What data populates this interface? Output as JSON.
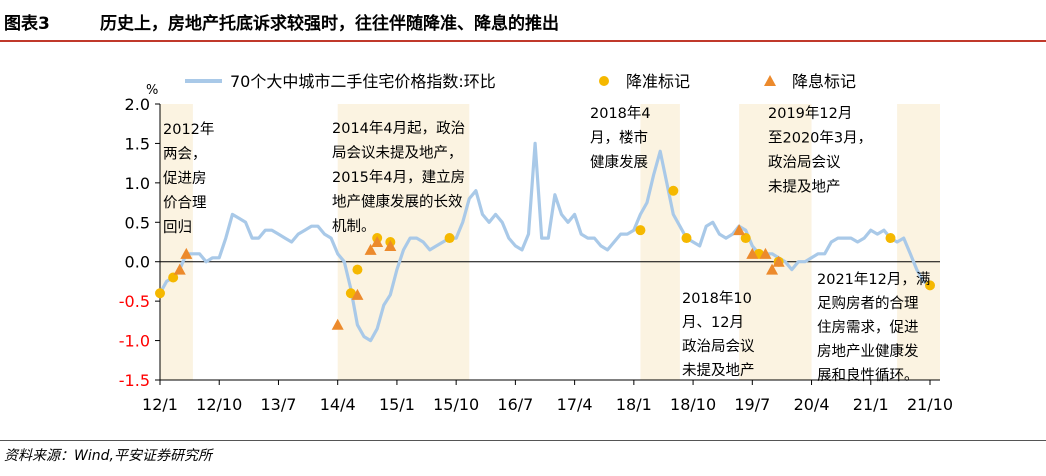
{
  "header": {
    "figure_no": "图表3",
    "title": "历史上，房地产托底诉求较强时，往往伴随降准、降息的推出"
  },
  "footer": {
    "source": "资料来源：Wind,平安证券研究所"
  },
  "colors": {
    "line": "#a9c9e8",
    "rrr_marker": "#f5b800",
    "rate_marker": "#ec8a2c",
    "shade": "#fbf3e1",
    "negative_tick": "#ff0000",
    "rule": "#c0392b"
  },
  "chart_data": {
    "type": "line",
    "unit_label": "%",
    "ylim": [
      -1.5,
      2.0
    ],
    "yticks": [
      {
        "value": 2.0,
        "label": "2.0"
      },
      {
        "value": 1.5,
        "label": "1.5"
      },
      {
        "value": 1.0,
        "label": "1.0"
      },
      {
        "value": 0.5,
        "label": "0.5"
      },
      {
        "value": 0.0,
        "label": "0.0"
      },
      {
        "value": -0.5,
        "label": "-0.5"
      },
      {
        "value": -1.0,
        "label": "-1.0"
      },
      {
        "value": -1.5,
        "label": "-1.5"
      }
    ],
    "xlim": [
      0,
      117
    ],
    "xticks": [
      {
        "index": 0,
        "label": "12/1"
      },
      {
        "index": 9,
        "label": "12/10"
      },
      {
        "index": 18,
        "label": "13/7"
      },
      {
        "index": 27,
        "label": "14/4"
      },
      {
        "index": 36,
        "label": "15/1"
      },
      {
        "index": 45,
        "label": "15/10"
      },
      {
        "index": 54,
        "label": "16/7"
      },
      {
        "index": 63,
        "label": "17/4"
      },
      {
        "index": 72,
        "label": "18/1"
      },
      {
        "index": 81,
        "label": "18/10"
      },
      {
        "index": 90,
        "label": "19/7"
      },
      {
        "index": 99,
        "label": "20/4"
      },
      {
        "index": 108,
        "label": "21/1"
      },
      {
        "index": 117,
        "label": "21/10"
      }
    ],
    "legend": [
      {
        "key": "line",
        "label": "70个大中城市二手住宅价格指数:环比"
      },
      {
        "key": "rrr",
        "label": "降准标记"
      },
      {
        "key": "rate",
        "label": "降息标记"
      }
    ],
    "shaded_periods": [
      {
        "start": 0,
        "end": 5
      },
      {
        "start": 27,
        "end": 47
      },
      {
        "start": 73,
        "end": 79
      },
      {
        "start": 88,
        "end": 99
      },
      {
        "start": 112,
        "end": 119
      }
    ],
    "series": [
      {
        "name": "70个大中城市二手住宅价格指数:环比",
        "x": [
          0,
          1,
          2,
          3,
          4,
          5,
          6,
          7,
          8,
          9,
          10,
          11,
          12,
          13,
          14,
          15,
          16,
          17,
          18,
          19,
          20,
          21,
          22,
          23,
          24,
          25,
          26,
          27,
          28,
          29,
          30,
          31,
          32,
          33,
          34,
          35,
          36,
          37,
          38,
          39,
          40,
          41,
          42,
          43,
          44,
          45,
          46,
          47,
          48,
          49,
          50,
          51,
          52,
          53,
          54,
          55,
          56,
          57,
          58,
          59,
          60,
          61,
          62,
          63,
          64,
          65,
          66,
          67,
          68,
          69,
          70,
          71,
          72,
          73,
          74,
          75,
          76,
          77,
          78,
          79,
          80,
          81,
          82,
          83,
          84,
          85,
          86,
          87,
          88,
          89,
          90,
          91,
          92,
          93,
          94,
          95,
          96,
          97,
          98,
          99,
          100,
          101,
          102,
          103,
          104,
          105,
          106,
          107,
          108,
          109,
          110,
          111,
          112,
          113,
          114,
          115,
          116,
          117
        ],
        "y": [
          -0.4,
          -0.25,
          -0.2,
          -0.1,
          0.1,
          0.1,
          0.1,
          0.0,
          0.05,
          0.05,
          0.3,
          0.6,
          0.55,
          0.5,
          0.3,
          0.3,
          0.4,
          0.4,
          0.35,
          0.3,
          0.25,
          0.35,
          0.4,
          0.45,
          0.45,
          0.35,
          0.3,
          0.1,
          0.0,
          -0.35,
          -0.8,
          -0.95,
          -1.0,
          -0.85,
          -0.55,
          -0.42,
          -0.1,
          0.15,
          0.3,
          0.3,
          0.25,
          0.15,
          0.2,
          0.25,
          0.3,
          0.3,
          0.5,
          0.8,
          0.9,
          0.6,
          0.5,
          0.6,
          0.5,
          0.3,
          0.2,
          0.15,
          0.35,
          1.5,
          0.3,
          0.3,
          0.85,
          0.6,
          0.5,
          0.6,
          0.35,
          0.3,
          0.3,
          0.2,
          0.15,
          0.25,
          0.35,
          0.35,
          0.4,
          0.6,
          0.75,
          1.1,
          1.4,
          1.0,
          0.6,
          0.45,
          0.3,
          0.25,
          0.2,
          0.45,
          0.5,
          0.35,
          0.3,
          0.35,
          0.45,
          0.4,
          0.2,
          0.1,
          0.1,
          0.1,
          0.05,
          0.0,
          -0.1,
          0.0,
          0.0,
          0.05,
          0.1,
          0.1,
          0.25,
          0.3,
          0.3,
          0.3,
          0.25,
          0.3,
          0.4,
          0.35,
          0.4,
          0.3,
          0.25,
          0.3,
          0.1,
          -0.1,
          -0.25,
          -0.3
        ]
      }
    ],
    "rrr_markers": [
      {
        "x": 0,
        "y": -0.4
      },
      {
        "x": 2,
        "y": -0.2
      },
      {
        "x": 29,
        "y": -0.4
      },
      {
        "x": 30,
        "y": -0.1
      },
      {
        "x": 33,
        "y": 0.3
      },
      {
        "x": 35,
        "y": 0.25
      },
      {
        "x": 44,
        "y": 0.3
      },
      {
        "x": 73,
        "y": 0.4
      },
      {
        "x": 78,
        "y": 0.9
      },
      {
        "x": 80,
        "y": 0.3
      },
      {
        "x": 89,
        "y": 0.3
      },
      {
        "x": 91,
        "y": 0.1
      },
      {
        "x": 94,
        "y": 0.0
      },
      {
        "x": 111,
        "y": 0.3
      },
      {
        "x": 117,
        "y": -0.3
      }
    ],
    "rate_markers": [
      {
        "x": 3,
        "y": -0.1
      },
      {
        "x": 4,
        "y": 0.1
      },
      {
        "x": 27,
        "y": -0.8
      },
      {
        "x": 30,
        "y": -0.42
      },
      {
        "x": 32,
        "y": 0.15
      },
      {
        "x": 33,
        "y": 0.25
      },
      {
        "x": 35,
        "y": 0.2
      },
      {
        "x": 88,
        "y": 0.4
      },
      {
        "x": 90,
        "y": 0.1
      },
      {
        "x": 92,
        "y": 0.1
      },
      {
        "x": 93,
        "y": -0.1
      },
      {
        "x": 94,
        "y": 0.0
      }
    ],
    "annotations": [
      {
        "lines": [
          "2012年",
          "两会，",
          "促进房",
          "价合理",
          "回归"
        ]
      },
      {
        "lines": [
          "2014年4月起，政治",
          "局会议未提及地产，",
          "2015年4月，建立房",
          "地产健康发展的长效",
          "机制。"
        ]
      },
      {
        "lines": [
          "2018年4",
          "月，楼市",
          "健康发展"
        ]
      },
      {
        "lines": [
          "2019年12月",
          "至2020年3月，",
          "政治局会议",
          "未提及地产"
        ]
      },
      {
        "lines": [
          "2018年10",
          "月、12月",
          "政治局会议",
          "未提及地产"
        ]
      },
      {
        "lines": [
          "2021年12月，满",
          "足购房者的合理",
          "住房需求，促进",
          "房地产业健康发",
          "展和良性循环。"
        ]
      }
    ]
  }
}
